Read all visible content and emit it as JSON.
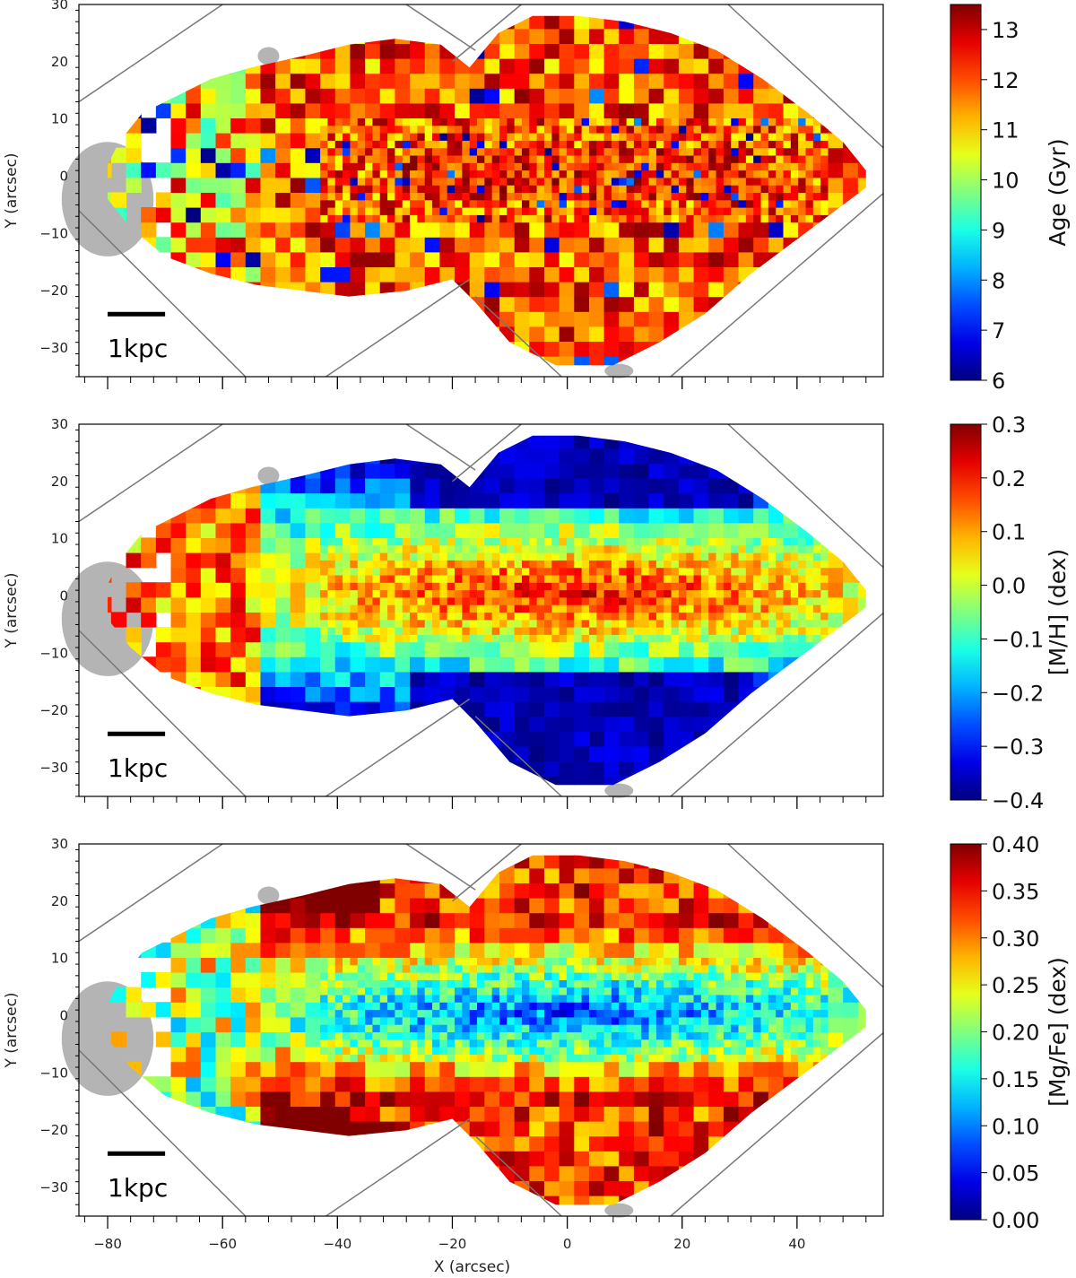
{
  "chart_data": [
    {
      "type": "heatmap",
      "name": "age-map",
      "colorbar": {
        "label": "Age (Gyr)",
        "range": [
          6,
          13.5
        ],
        "ticks": [
          6,
          7,
          8,
          9,
          10,
          11,
          12,
          13
        ],
        "tick_labels": [
          "6",
          "7",
          "8",
          "9",
          "10",
          "11",
          "12",
          "13"
        ]
      },
      "xlim": [
        -85,
        55
      ],
      "ylim": [
        -35,
        30
      ],
      "xlabel": "",
      "ylabel": "Y (arcsec)",
      "yticks": [
        -30,
        -20,
        -10,
        0,
        10,
        20,
        30
      ],
      "ytick_labels": [
        "−30",
        "−20",
        "−10",
        "0",
        "10",
        "20",
        "30"
      ],
      "xticks": [
        -80,
        -60,
        -40,
        -20,
        0,
        20,
        40
      ],
      "xtick_labels": [],
      "scalebar_label": "1kpc",
      "pattern": "age"
    },
    {
      "type": "heatmap",
      "name": "metallicity-map",
      "colorbar": {
        "label": "[M/H] (dex)",
        "range": [
          -0.4,
          0.3
        ],
        "ticks": [
          -0.4,
          -0.3,
          -0.2,
          -0.1,
          0.0,
          0.1,
          0.2,
          0.3
        ],
        "tick_labels": [
          "−0.4",
          "−0.3",
          "−0.2",
          "−0.1",
          "0.0",
          "0.1",
          "0.2",
          "0.3"
        ]
      },
      "xlim": [
        -85,
        55
      ],
      "ylim": [
        -35,
        30
      ],
      "xlabel": "",
      "ylabel": "Y (arcsec)",
      "yticks": [
        -30,
        -20,
        -10,
        0,
        10,
        20,
        30
      ],
      "ytick_labels": [
        "−30",
        "−20",
        "−10",
        "0",
        "10",
        "20",
        "30"
      ],
      "xticks": [
        -80,
        -60,
        -40,
        -20,
        0,
        20,
        40
      ],
      "xtick_labels": [],
      "scalebar_label": "1kpc",
      "pattern": "metallicity"
    },
    {
      "type": "heatmap",
      "name": "mgfe-map",
      "colorbar": {
        "label": "[Mg/Fe] (dex)",
        "range": [
          0.0,
          0.4
        ],
        "ticks": [
          0.0,
          0.05,
          0.1,
          0.15,
          0.2,
          0.25,
          0.3,
          0.35,
          0.4
        ],
        "tick_labels": [
          "0.00",
          "0.05",
          "0.10",
          "0.15",
          "0.20",
          "0.25",
          "0.30",
          "0.35",
          "0.40"
        ]
      },
      "xlim": [
        -85,
        55
      ],
      "ylim": [
        -35,
        30
      ],
      "xlabel": "X (arcsec)",
      "ylabel": "Y (arcsec)",
      "yticks": [
        -30,
        -20,
        -10,
        0,
        10,
        20,
        30
      ],
      "ytick_labels": [
        "−30",
        "−20",
        "−10",
        "0",
        "10",
        "20",
        "30"
      ],
      "xticks": [
        -80,
        -60,
        -40,
        -20,
        0,
        20,
        40
      ],
      "xtick_labels": [
        "−80",
        "−60",
        "−40",
        "−20",
        "0",
        "20",
        "40"
      ],
      "scalebar_label": "1kpc",
      "pattern": "mgfe"
    }
  ],
  "colors": {
    "masked": "#b4b4b4",
    "footprint_line": "#777777",
    "axis": "#000000"
  }
}
